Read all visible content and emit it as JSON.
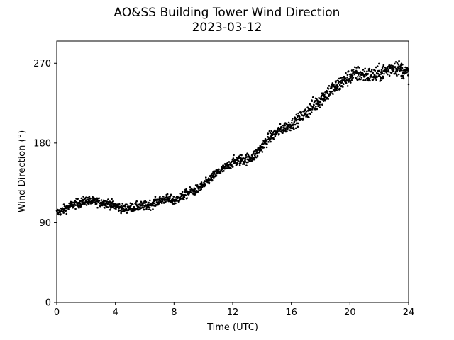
{
  "chart_data": {
    "type": "scatter",
    "title": "AO&SS Building Tower Wind Direction",
    "subtitle": "2023-03-12",
    "xlabel": "Time (UTC)",
    "ylabel": "Wind Direction (°)",
    "xlim": [
      0,
      24
    ],
    "ylim": [
      0,
      295
    ],
    "xticks": [
      0,
      4,
      8,
      12,
      16,
      20,
      24
    ],
    "yticks": [
      0,
      90,
      180,
      270
    ],
    "grid": false,
    "marker_color": "#000000",
    "series": [
      {
        "x": [
          0.0,
          0.5,
          1.0,
          1.5,
          2.0,
          2.5,
          3.0,
          3.5,
          4.0,
          4.5,
          5.0,
          5.5,
          6.0,
          6.5,
          7.0,
          7.5,
          8.0,
          8.5,
          9.0,
          9.5,
          10.0,
          10.5,
          11.0,
          11.5,
          12.0,
          12.5,
          13.0,
          13.5,
          14.0,
          14.5,
          15.0,
          15.5,
          16.0,
          16.5,
          17.0,
          17.5,
          18.0,
          18.5,
          19.0,
          19.5,
          20.0,
          20.5,
          21.0,
          21.5,
          22.0,
          22.5,
          23.0,
          23.5,
          24.0
        ],
        "y": [
          101,
          105,
          110,
          112,
          115,
          114,
          113,
          112,
          109,
          106,
          107,
          108,
          109,
          111,
          115,
          117,
          115,
          119,
          124,
          127,
          132,
          140,
          147,
          152,
          158,
          161,
          162,
          166,
          176,
          186,
          192,
          197,
          201,
          207,
          214,
          222,
          230,
          237,
          243,
          249,
          255,
          258,
          257,
          256,
          258,
          262,
          266,
          263,
          258
        ]
      }
    ]
  }
}
